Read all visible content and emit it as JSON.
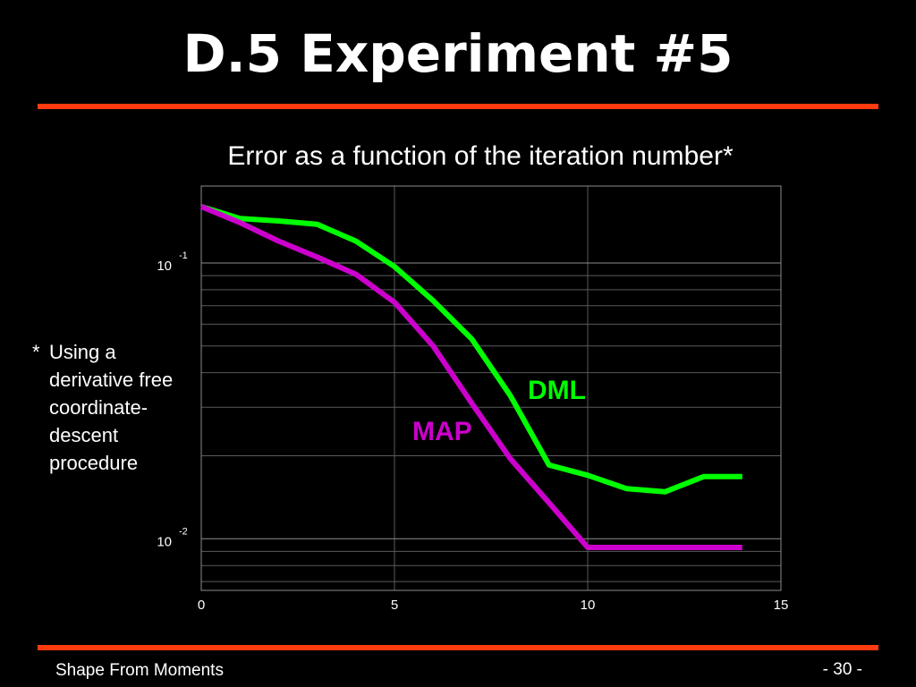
{
  "slide": {
    "title": "D.5 Experiment #5",
    "footer_left": "Shape From Moments",
    "footer_right": "- 30 -",
    "accent_color": "#ff3b0f"
  },
  "footnote": {
    "star": "*",
    "text": "Using a derivative free coordinate-descent procedure"
  },
  "chart_data": {
    "type": "line",
    "title": "Error as a function of the iteration number*",
    "xlabel": "",
    "ylabel": "",
    "xlim": [
      0,
      15
    ],
    "ylim": [
      0.0065,
      0.19
    ],
    "y_scale": "log",
    "grid": true,
    "x_ticks": [
      "0",
      "5",
      "10",
      "15"
    ],
    "y_ticks": [
      {
        "base": "10",
        "exp": "-1",
        "value": 0.1
      },
      {
        "base": "10",
        "exp": "-2",
        "value": 0.01
      }
    ],
    "series": [
      {
        "name": "DML",
        "color": "#00ff00",
        "x": [
          0,
          1,
          2,
          3,
          4,
          5,
          6,
          7,
          8,
          9,
          10,
          11,
          12,
          13,
          14
        ],
        "y": [
          0.16,
          0.145,
          0.142,
          0.138,
          0.12,
          0.097,
          0.073,
          0.053,
          0.033,
          0.0185,
          0.017,
          0.0152,
          0.0148,
          0.0168,
          0.0168
        ]
      },
      {
        "name": "MAP",
        "color": "#cc00cc",
        "x": [
          0,
          1,
          2,
          3,
          4,
          5,
          6,
          7,
          8,
          9,
          10,
          11,
          12,
          13,
          14
        ],
        "y": [
          0.16,
          0.14,
          0.12,
          0.105,
          0.091,
          0.072,
          0.05,
          0.031,
          0.0195,
          0.0135,
          0.0093,
          0.0093,
          0.0093,
          0.0093,
          0.0093
        ]
      }
    ]
  }
}
